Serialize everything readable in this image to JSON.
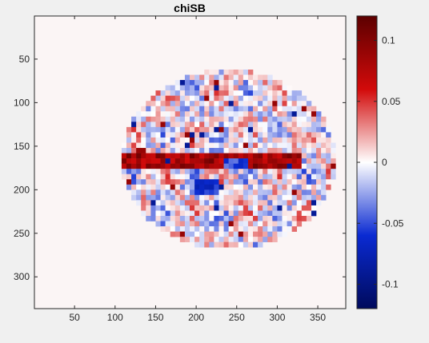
{
  "chart_data": {
    "type": "heatmap",
    "title": "chiSB",
    "xlabel": "",
    "ylabel": "",
    "xlim": [
      0.5,
      384.5
    ],
    "ylim": [
      0.5,
      336.5
    ],
    "y_reversed": true,
    "xticks": [
      50,
      100,
      150,
      200,
      250,
      300,
      350
    ],
    "yticks": [
      50,
      100,
      150,
      200,
      250,
      300
    ],
    "colorbar": {
      "limits": [
        -0.12,
        0.12
      ],
      "ticks": [
        -0.1,
        -0.05,
        0,
        0.05,
        0.1
      ],
      "tick_labels": [
        "-0.1",
        "-0.05",
        "0",
        "0.05",
        "0.1"
      ],
      "colors": [
        "#000a5c",
        "#0a2ad2",
        "#ffffff",
        "#d20a0a",
        "#5c0000"
      ]
    },
    "grid": false,
    "background_value": 0,
    "region": {
      "shape": "ellipse",
      "center_x": 240,
      "center_y": 165,
      "radius_x": 132,
      "radius_y": 103
    },
    "features": [
      {
        "description": "horizontal dark red streak",
        "x": [
          70,
          325
        ],
        "y": [
          158,
          172
        ],
        "value": 0.1
      },
      {
        "description": "blue cluster",
        "x": [
          195,
          225
        ],
        "y": [
          185,
          200
        ],
        "value": -0.07
      },
      {
        "description": "blue cluster",
        "x": [
          230,
          260
        ],
        "y": [
          160,
          175
        ],
        "value": -0.06
      }
    ]
  },
  "colors": {
    "figure_background": "#f0f0f0",
    "axes_background": "#fbf5f5",
    "axis_color": "#262626"
  }
}
